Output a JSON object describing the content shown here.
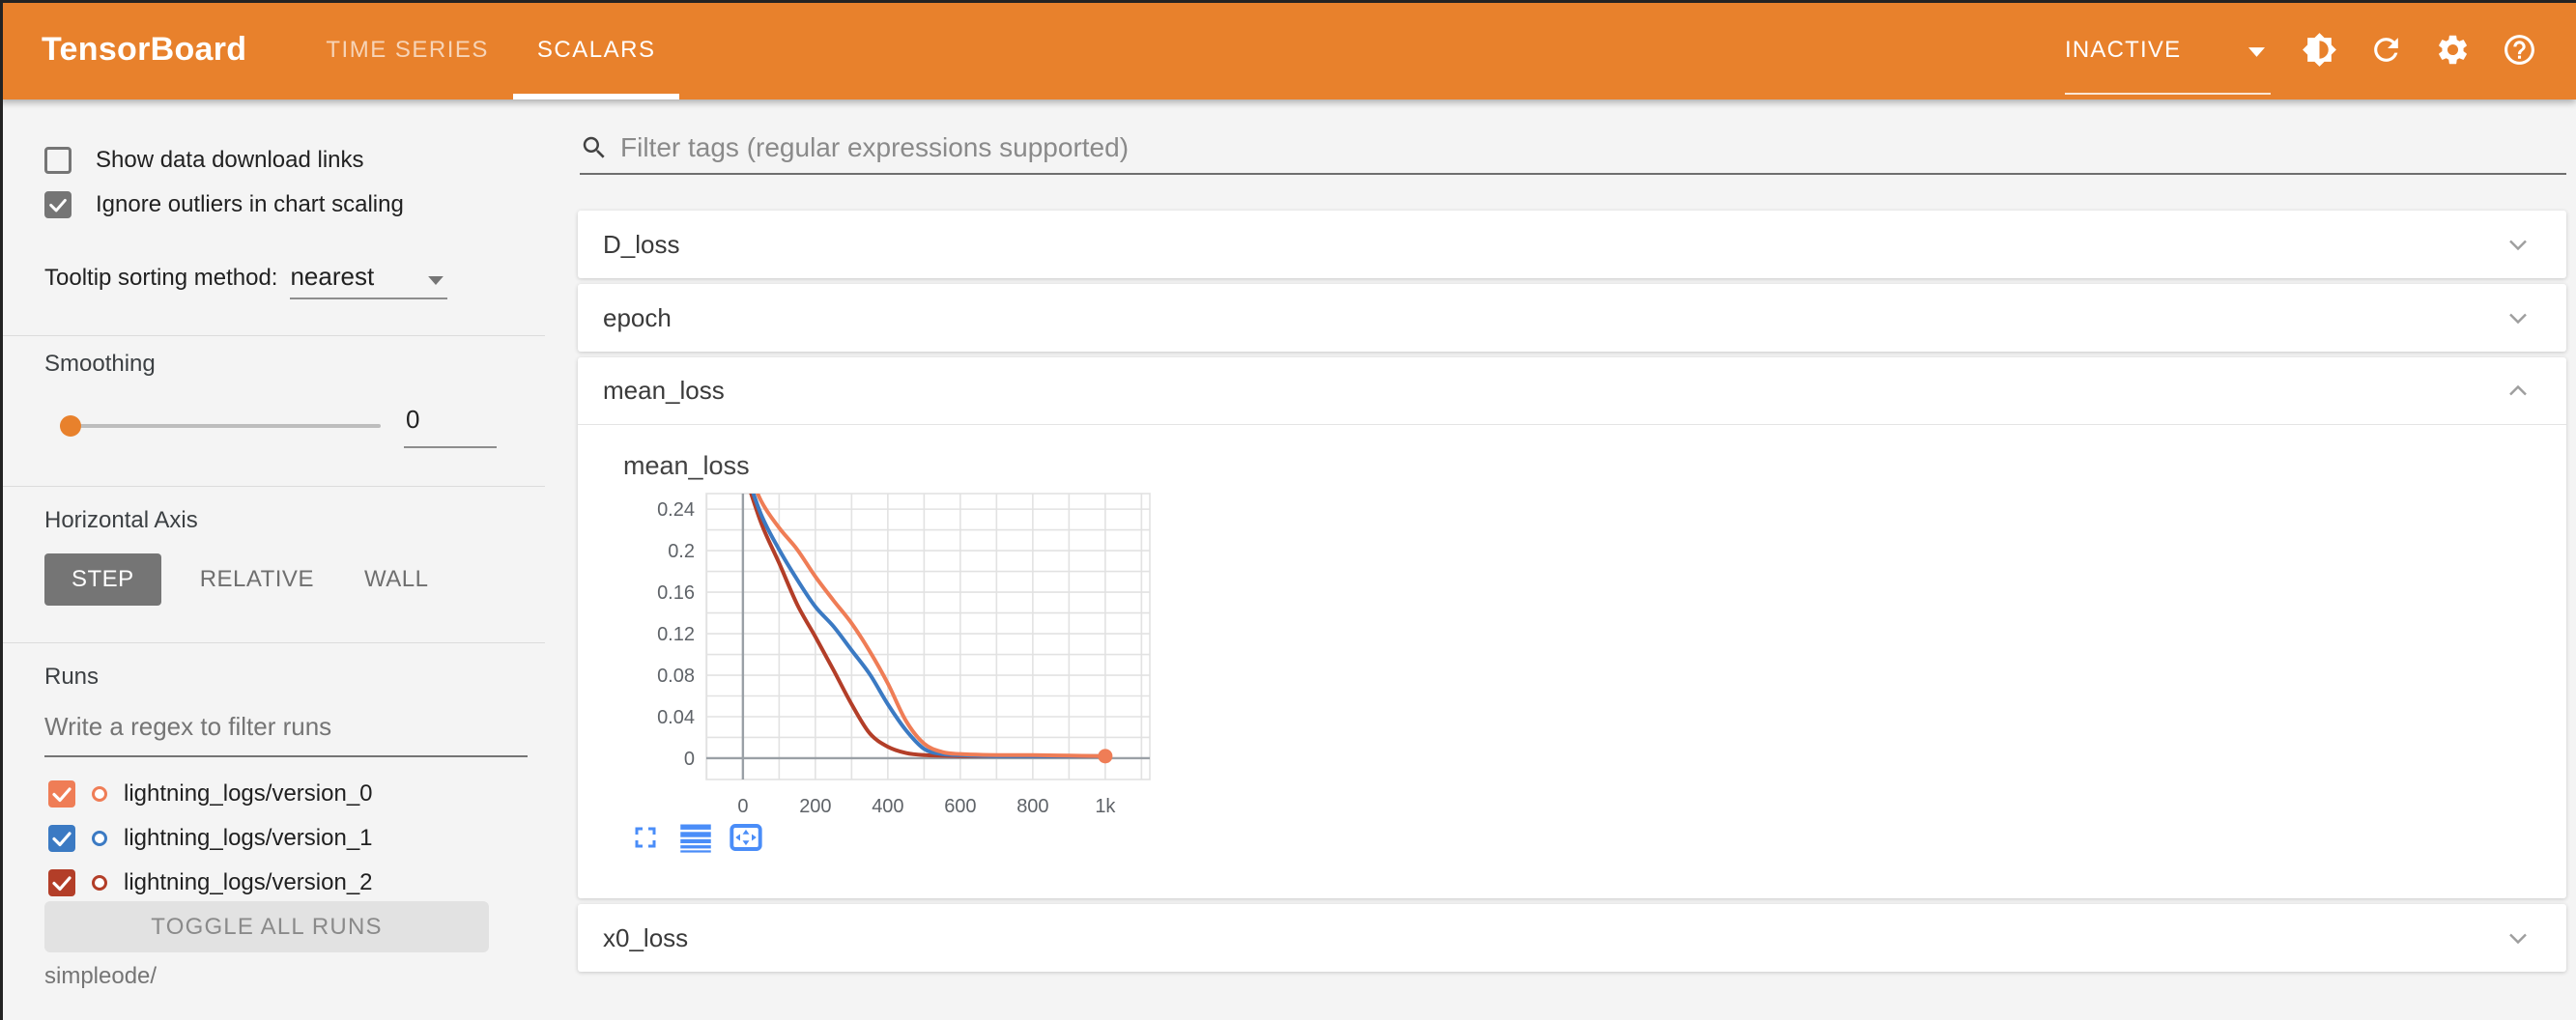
{
  "colors": {
    "header_orange": "#e8812c",
    "toolbar_blue": "#4a8df8",
    "selected_gray": "#757575"
  },
  "header": {
    "title": "TensorBoard",
    "tabs": [
      {
        "label": "TIME SERIES",
        "active": false
      },
      {
        "label": "SCALARS",
        "active": true
      }
    ],
    "status_dropdown": {
      "value": "INACTIVE"
    },
    "icons": [
      "brightness-icon",
      "refresh-icon",
      "settings-icon",
      "help-icon"
    ]
  },
  "sidebar": {
    "checkboxes": [
      {
        "label": "Show data download links",
        "checked": false
      },
      {
        "label": "Ignore outliers in chart scaling",
        "checked": true
      }
    ],
    "tooltip_sorting": {
      "label": "Tooltip sorting method:",
      "value": "nearest"
    },
    "smoothing": {
      "label": "Smoothing",
      "value": "0"
    },
    "horizontal_axis": {
      "label": "Horizontal Axis",
      "options": [
        "STEP",
        "RELATIVE",
        "WALL"
      ],
      "selected": "STEP"
    },
    "runs": {
      "label": "Runs",
      "filter_placeholder": "Write a regex to filter runs",
      "items": [
        {
          "label": "lightning_logs/version_0",
          "checked": true,
          "color": "#ef7d56"
        },
        {
          "label": "lightning_logs/version_1",
          "checked": true,
          "color": "#3b7ac3"
        },
        {
          "label": "lightning_logs/version_2",
          "checked": true,
          "color": "#b33e28"
        }
      ],
      "toggle_all_label": "TOGGLE ALL RUNS",
      "footer": "simpleode/"
    }
  },
  "main": {
    "filter_placeholder": "Filter tags (regular expressions supported)",
    "sections": [
      {
        "label": "D_loss",
        "expanded": false
      },
      {
        "label": "epoch",
        "expanded": false
      },
      {
        "label": "mean_loss",
        "expanded": true
      },
      {
        "label": "x0_loss",
        "expanded": false
      }
    ],
    "chart_toolbar": [
      "fullscreen-icon",
      "log-scale-icon",
      "fit-domain-icon"
    ]
  },
  "chart_data": {
    "type": "line",
    "title": "mean_loss",
    "xlabel": "",
    "ylabel": "",
    "xlim": [
      -101,
      1123
    ],
    "ylim": [
      -0.0205,
      0.255
    ],
    "x_grid_step": 100,
    "y_grid_step": 0.02,
    "grid": true,
    "x_tick_values": [
      0,
      200,
      400,
      600,
      800,
      1000
    ],
    "x_tick_labels": [
      "0",
      "200",
      "400",
      "600",
      "800",
      "1k"
    ],
    "y_tick_values": [
      0,
      0.04,
      0.08,
      0.12,
      0.16,
      0.2,
      0.24
    ],
    "y_tick_labels": [
      "0",
      "0.04",
      "0.08",
      "0.12",
      "0.16",
      "0.2",
      "0.24"
    ],
    "series": [
      {
        "name": "lightning_logs/version_2",
        "color": "#b33e28",
        "points": [
          [
            0,
            0.28
          ],
          [
            50,
            0.227
          ],
          [
            100,
            0.188
          ],
          [
            150,
            0.148
          ],
          [
            200,
            0.117
          ],
          [
            250,
            0.085
          ],
          [
            300,
            0.052
          ],
          [
            350,
            0.024
          ],
          [
            400,
            0.011
          ],
          [
            450,
            0.005
          ],
          [
            500,
            0.003
          ],
          [
            600,
            0.002
          ],
          [
            700,
            0.002
          ],
          [
            800,
            0.002
          ],
          [
            900,
            0.002
          ],
          [
            1000,
            0.002
          ]
        ]
      },
      {
        "name": "lightning_logs/version_1",
        "color": "#3b7ac3",
        "points": [
          [
            0,
            0.285
          ],
          [
            50,
            0.235
          ],
          [
            100,
            0.201
          ],
          [
            150,
            0.172
          ],
          [
            200,
            0.146
          ],
          [
            250,
            0.127
          ],
          [
            300,
            0.104
          ],
          [
            350,
            0.081
          ],
          [
            400,
            0.052
          ],
          [
            450,
            0.027
          ],
          [
            500,
            0.009
          ],
          [
            550,
            0.004
          ],
          [
            600,
            0.003
          ],
          [
            700,
            0.002
          ],
          [
            800,
            0.002
          ],
          [
            900,
            0.002
          ],
          [
            1000,
            0.002
          ]
        ]
      },
      {
        "name": "lightning_logs/version_0",
        "color": "#ef7d56",
        "end_marker": true,
        "points": [
          [
            0,
            0.29
          ],
          [
            50,
            0.248
          ],
          [
            100,
            0.222
          ],
          [
            150,
            0.201
          ],
          [
            200,
            0.175
          ],
          [
            250,
            0.152
          ],
          [
            300,
            0.13
          ],
          [
            350,
            0.103
          ],
          [
            400,
            0.072
          ],
          [
            450,
            0.036
          ],
          [
            500,
            0.014
          ],
          [
            550,
            0.006
          ],
          [
            600,
            0.004
          ],
          [
            700,
            0.003
          ],
          [
            800,
            0.003
          ],
          [
            900,
            0.0025
          ],
          [
            1000,
            0.002
          ]
        ]
      }
    ]
  }
}
